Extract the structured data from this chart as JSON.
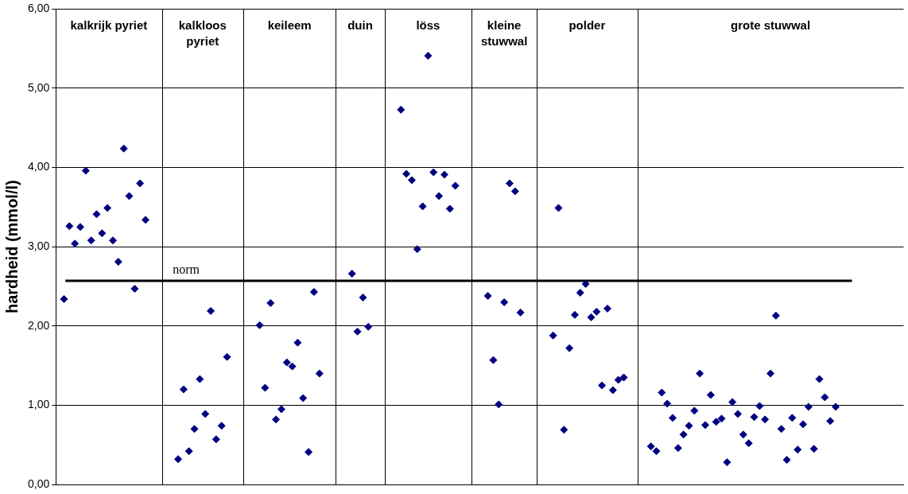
{
  "chart_data": {
    "type": "scatter",
    "ylabel": "hardheid (mmol/l)",
    "ylim": [
      0,
      6
    ],
    "categories": [
      null,
      null,
      null,
      null,
      null,
      null,
      null,
      null,
      null,
      null,
      null,
      null,
      null,
      null,
      null,
      null,
      null,
      null,
      null,
      null,
      null,
      null,
      null,
      null,
      null,
      null,
      null,
      null,
      null,
      null,
      null,
      null,
      null,
      null,
      null,
      null,
      null,
      null,
      null,
      null,
      null,
      null,
      null,
      null,
      null,
      null,
      null,
      null,
      null,
      null,
      null,
      null,
      null,
      null,
      null,
      null,
      null,
      null,
      null,
      null,
      null,
      null,
      null,
      null,
      null,
      null,
      null,
      null,
      null,
      null,
      null,
      null,
      null,
      null,
      null,
      null,
      null,
      null,
      null,
      null,
      null,
      null,
      null,
      null,
      null,
      null,
      null,
      null,
      null,
      null,
      null,
      null,
      null,
      null,
      null,
      null,
      null,
      null,
      null,
      null,
      null,
      null,
      null,
      null,
      null,
      null,
      null,
      null,
      null,
      null,
      null,
      null,
      null,
      null,
      null,
      null,
      null,
      null,
      null,
      null,
      null,
      null,
      null,
      null,
      null,
      null,
      null,
      null,
      null,
      null,
      null,
      null,
      null,
      null,
      null,
      null,
      null,
      null,
      null,
      null,
      null,
      null,
      null,
      null,
      null,
      null,
      null,
      null,
      null,
      null,
      null,
      null,
      null,
      null,
      null,
      null
    ],
    "yticks": [
      {
        "value": 0,
        "label": "0,00"
      },
      {
        "value": 1,
        "label": "1,00"
      },
      {
        "value": 2,
        "label": "2,00"
      },
      {
        "value": 3,
        "label": "3,00"
      },
      {
        "value": 4,
        "label": "4,00"
      },
      {
        "value": 5,
        "label": "5,00"
      },
      {
        "value": 6,
        "label": "6,00"
      }
    ],
    "tick_labels": "y",
    "grid": "y",
    "legend": false,
    "marker": "diamond",
    "series": [
      {
        "color": "#000080",
        "values": [
          null,
          2.34,
          3.26,
          3.04,
          3.25,
          3.96,
          3.08,
          3.41,
          3.17,
          3.49,
          3.08,
          2.81,
          4.24,
          3.64,
          2.47,
          3.8,
          3.34,
          null,
          null,
          null,
          null,
          null,
          0.32,
          1.2,
          0.42,
          0.7,
          1.33,
          0.89,
          2.19,
          0.57,
          0.74,
          1.61,
          null,
          null,
          null,
          null,
          null,
          2.01,
          1.22,
          2.29,
          0.82,
          0.95,
          1.54,
          1.49,
          1.79,
          1.09,
          0.41,
          2.43,
          1.4,
          null,
          null,
          null,
          null,
          null,
          2.66,
          1.93,
          2.36,
          1.99,
          null,
          null,
          null,
          null,
          null,
          4.73,
          3.92,
          3.84,
          2.97,
          3.51,
          5.41,
          3.94,
          3.64,
          3.91,
          3.48,
          3.77,
          null,
          null,
          null,
          null,
          null,
          2.38,
          1.57,
          1.01,
          2.3,
          3.8,
          3.7,
          2.17,
          null,
          null,
          null,
          null,
          null,
          1.88,
          3.49,
          0.69,
          1.72,
          2.14,
          2.42,
          2.53,
          2.11,
          2.18,
          1.25,
          2.22,
          1.19,
          1.32,
          1.35,
          null,
          null,
          null,
          null,
          0.48,
          0.42,
          1.16,
          1.02,
          0.84,
          0.46,
          0.63,
          0.74,
          0.93,
          1.4,
          0.75,
          1.13,
          0.79,
          0.83,
          0.28,
          1.04,
          0.89,
          0.63,
          0.52,
          0.85,
          0.99,
          0.82,
          1.4,
          2.13,
          0.7,
          0.31,
          0.84,
          0.44,
          0.76,
          0.98,
          0.45,
          1.33,
          1.1,
          0.8,
          0.98,
          null,
          null,
          null,
          null,
          null,
          null,
          null,
          null,
          null,
          null,
          null,
          null
        ]
      }
    ],
    "ref_lines": [
      {
        "axis": "y",
        "value": 2.57,
        "label": "norm",
        "color": "#000000"
      }
    ],
    "annotations": [
      "kalkrijk pyriet",
      "kalkloos pyriet",
      "keileem",
      "duin",
      "löss",
      "kleine stuwwal",
      "polder",
      "grote stuwwal"
    ]
  }
}
